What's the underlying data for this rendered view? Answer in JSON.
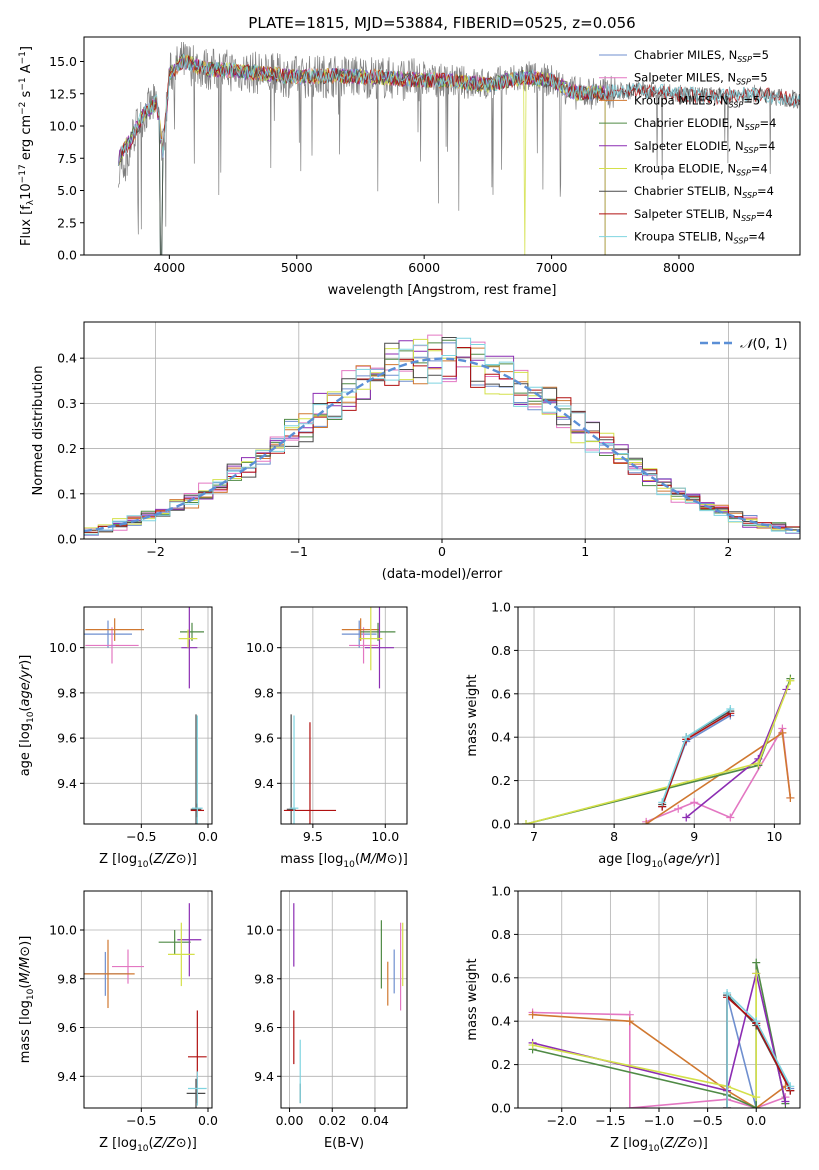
{
  "figure": {
    "title": "PLATE=1815, MJD=53884, FIBERID=0525, z=0.056",
    "series_colors": [
      "#6f8fcf",
      "#e377c2",
      "#d07830",
      "#4f8a45",
      "#8c2db3",
      "#d4e04a",
      "#4a4a4a",
      "#b01010",
      "#7fd4e0"
    ],
    "spectrum_color": "#808080"
  },
  "chart_data": [
    {
      "id": "spectrum",
      "type": "line",
      "title": "PLATE=1815, MJD=53884, FIBERID=0525, z=0.056",
      "xlabel": "wavelength [Angstrom, rest frame]",
      "ylabel": "Flux [f_λ 10^-17 erg cm^-2 s^-1 A^-1]",
      "xlim": [
        3330,
        8950
      ],
      "ylim": [
        0,
        16.9
      ],
      "xticks": [
        4000,
        5000,
        6000,
        7000,
        8000
      ],
      "yticks": [
        0.0,
        2.5,
        5.0,
        7.5,
        10.0,
        12.5,
        15.0
      ],
      "grid": false,
      "legend_position": "top-right",
      "legend": [
        {
          "name": "Chabrier MILES",
          "nssp": "5"
        },
        {
          "name": "Salpeter MILES",
          "nssp": "5"
        },
        {
          "name": "Kroupa MILES",
          "nssp": "5"
        },
        {
          "name": "Chabrier ELODIE",
          "nssp": "4"
        },
        {
          "name": "Salpeter ELODIE",
          "nssp": "4"
        },
        {
          "name": "Kroupa ELODIE",
          "nssp": "4"
        },
        {
          "name": "Chabrier STELIB",
          "nssp": "4"
        },
        {
          "name": "Salpeter STELIB",
          "nssp": "4"
        },
        {
          "name": "Kroupa STELIB",
          "nssp": "4"
        }
      ],
      "data_anchor_x": [
        3600,
        3700,
        3800,
        3900,
        3950,
        4000,
        4100,
        4300,
        4500,
        4800,
        5000,
        5300,
        5600,
        5900,
        6200,
        6500,
        6800,
        7000,
        7200,
        7400,
        7700,
        8000,
        8300,
        8600,
        8950
      ],
      "data_anchor_y": [
        7.5,
        9.0,
        11.0,
        11.8,
        8.0,
        14.0,
        15.0,
        14.4,
        14.3,
        14.0,
        13.8,
        13.9,
        13.8,
        13.6,
        13.5,
        13.2,
        13.8,
        13.5,
        12.5,
        12.6,
        12.8,
        12.5,
        12.3,
        12.5,
        12.0
      ],
      "models_end_x": 7420
    },
    {
      "id": "residuals",
      "type": "histogram",
      "xlabel": "(data-model)/error",
      "ylabel": "Normed distribution",
      "xlim": [
        -2.5,
        2.5
      ],
      "ylim": [
        0,
        0.48
      ],
      "xticks": [
        -2,
        -1,
        0,
        1,
        2
      ],
      "yticks": [
        0.0,
        0.1,
        0.2,
        0.3,
        0.4
      ],
      "grid": true,
      "legend_position": "top-right",
      "legend": [
        {
          "name": "N(0, 1)"
        }
      ],
      "bin_width": 0.1,
      "reference_curve": "normal(0,1)"
    },
    {
      "id": "age-vs-Z",
      "type": "errorbar",
      "xlabel": "Z [log10(Z/Z⊙)]",
      "ylabel": "age [log10(age/yr)]",
      "xlim": [
        -0.93,
        0.03
      ],
      "ylim": [
        9.22,
        10.18
      ],
      "xticks": [
        -0.5,
        0.0
      ],
      "yticks": [
        9.4,
        9.6,
        9.8,
        10.0
      ],
      "grid": true,
      "points": [
        {
          "x": -0.75,
          "y": 10.06,
          "xerr": 0.18,
          "yerr": 0.06
        },
        {
          "x": -0.72,
          "y": 10.01,
          "xerr": 0.2,
          "yerr": 0.08
        },
        {
          "x": -0.7,
          "y": 10.08,
          "xerr": 0.22,
          "yerr": 0.05
        },
        {
          "x": -0.12,
          "y": 10.07,
          "xerr": 0.09,
          "yerr": 0.04
        },
        {
          "x": -0.14,
          "y": 10.0,
          "xerr": 0.06,
          "yerr": 0.18
        },
        {
          "x": -0.15,
          "y": 10.04,
          "xerr": 0.07,
          "yerr": 0.04
        },
        {
          "x": -0.09,
          "y": 9.285,
          "xerr": 0.04,
          "yerr": 0.42
        },
        {
          "x": -0.08,
          "y": 9.28,
          "xerr": 0.05,
          "yerr": 0.03
        },
        {
          "x": -0.08,
          "y": 9.29,
          "xerr": 0.04,
          "yerr": 0.41
        }
      ]
    },
    {
      "id": "age-vs-mass",
      "type": "errorbar",
      "xlabel": "mass [log10(M/M⊙)]",
      "ylabel": "",
      "xlim": [
        9.28,
        10.15
      ],
      "ylim": [
        9.22,
        10.18
      ],
      "xticks": [
        9.5,
        10.0
      ],
      "yticks": [
        9.4,
        9.6,
        9.8,
        10.0
      ],
      "grid": true,
      "points": [
        {
          "x": 9.82,
          "y": 10.06,
          "xerr": 0.12,
          "yerr": 0.06
        },
        {
          "x": 9.85,
          "y": 10.01,
          "xerr": 0.1,
          "yerr": 0.08
        },
        {
          "x": 9.83,
          "y": 10.08,
          "xerr": 0.13,
          "yerr": 0.05
        },
        {
          "x": 9.95,
          "y": 10.07,
          "xerr": 0.12,
          "yerr": 0.04
        },
        {
          "x": 9.96,
          "y": 10.0,
          "xerr": 0.1,
          "yerr": 0.18
        },
        {
          "x": 9.9,
          "y": 10.04,
          "xerr": 0.08,
          "yerr": 0.14
        },
        {
          "x": 9.35,
          "y": 9.285,
          "xerr": 0.03,
          "yerr": 0.42
        },
        {
          "x": 9.48,
          "y": 9.28,
          "xerr": 0.18,
          "yerr": 0.39
        },
        {
          "x": 9.37,
          "y": 9.29,
          "xerr": 0.03,
          "yerr": 0.41
        }
      ]
    },
    {
      "id": "weight-vs-age",
      "type": "line",
      "xlabel": "age [log10(age/yr)]",
      "ylabel": "mass weight",
      "xlim": [
        6.8,
        10.32
      ],
      "ylim": [
        0,
        1.0
      ],
      "xticks": [
        7,
        8,
        9,
        10
      ],
      "yticks": [
        0.0,
        0.2,
        0.4,
        0.6,
        0.8,
        1.0
      ],
      "grid": true,
      "series": [
        {
          "x": [
            8.6,
            8.9,
            9.45
          ],
          "y": [
            0.08,
            0.38,
            0.5
          ]
        },
        {
          "x": [
            8.4,
            8.8,
            9.0,
            9.45,
            10.1,
            10.2
          ],
          "y": [
            0.01,
            0.07,
            0.1,
            0.03,
            0.44,
            0.12
          ]
        },
        {
          "x": [
            8.4,
            10.1,
            10.2
          ],
          "y": [
            0.0,
            0.42,
            0.12
          ]
        },
        {
          "x": [
            6.9,
            9.8,
            10.2
          ],
          "y": [
            0.0,
            0.27,
            0.67
          ]
        },
        {
          "x": [
            8.9,
            9.8,
            10.15
          ],
          "y": [
            0.03,
            0.3,
            0.62
          ]
        },
        {
          "x": [
            6.9,
            9.8,
            10.2
          ],
          "y": [
            0.0,
            0.28,
            0.66
          ]
        },
        {
          "x": [
            8.6,
            8.9,
            9.45
          ],
          "y": [
            0.09,
            0.4,
            0.52
          ]
        },
        {
          "x": [
            8.6,
            8.9,
            9.45
          ],
          "y": [
            0.08,
            0.39,
            0.51
          ]
        },
        {
          "x": [
            8.6,
            8.9,
            9.45
          ],
          "y": [
            0.1,
            0.4,
            0.53
          ]
        }
      ]
    },
    {
      "id": "mass-vs-Z",
      "type": "errorbar",
      "xlabel": "Z [log10(Z/Z⊙)]",
      "ylabel": "mass [log10(M/M⊙)]",
      "xlim": [
        -0.93,
        0.03
      ],
      "ylim": [
        9.27,
        10.16
      ],
      "xticks": [
        -0.5,
        0.0
      ],
      "yticks": [
        9.4,
        9.6,
        9.8,
        10.0
      ],
      "grid": true,
      "points": [
        {
          "x": -0.77,
          "y": 9.82,
          "xerr": 0.18,
          "yerr": 0.09
        },
        {
          "x": -0.6,
          "y": 9.85,
          "xerr": 0.12,
          "yerr": 0.07
        },
        {
          "x": -0.75,
          "y": 9.82,
          "xerr": 0.2,
          "yerr": 0.14
        },
        {
          "x": -0.25,
          "y": 9.95,
          "xerr": 0.12,
          "yerr": 0.05
        },
        {
          "x": -0.14,
          "y": 9.96,
          "xerr": 0.09,
          "yerr": 0.15
        },
        {
          "x": -0.2,
          "y": 9.9,
          "xerr": 0.1,
          "yerr": 0.13
        },
        {
          "x": -0.09,
          "y": 9.33,
          "xerr": 0.07,
          "yerr": 0.06
        },
        {
          "x": -0.08,
          "y": 9.48,
          "xerr": 0.07,
          "yerr": 0.19
        },
        {
          "x": -0.08,
          "y": 9.35,
          "xerr": 0.07,
          "yerr": 0.07
        }
      ]
    },
    {
      "id": "mass-vs-EBV",
      "type": "errorbar",
      "xlabel": "E(B-V)",
      "ylabel": "",
      "xlim": [
        -0.004,
        0.055
      ],
      "ylim": [
        9.27,
        10.16
      ],
      "xticks": [
        0.0,
        0.02,
        0.04
      ],
      "yticks": [
        9.4,
        9.6,
        9.8,
        10.0
      ],
      "grid": true,
      "points": [
        {
          "x": 0.049,
          "y": 9.83,
          "xerr": 0.0,
          "yerr": 0.09
        },
        {
          "x": 0.052,
          "y": 9.85,
          "xerr": 0.0,
          "yerr": 0.18
        },
        {
          "x": 0.046,
          "y": 9.78,
          "xerr": 0.0,
          "yerr": 0.09
        },
        {
          "x": 0.043,
          "y": 9.9,
          "xerr": 0.0,
          "yerr": 0.14
        },
        {
          "x": 0.002,
          "y": 9.98,
          "xerr": 0.0,
          "yerr": 0.13
        },
        {
          "x": 0.053,
          "y": 9.9,
          "xerr": 0.0,
          "yerr": 0.13
        },
        {
          "x": 0.005,
          "y": 9.33,
          "xerr": 0.0,
          "yerr": 0.04
        },
        {
          "x": 0.002,
          "y": 9.56,
          "xerr": 0.0,
          "yerr": 0.11
        },
        {
          "x": 0.005,
          "y": 9.42,
          "xerr": 0.0,
          "yerr": 0.13
        }
      ]
    },
    {
      "id": "weight-vs-Z",
      "type": "line",
      "xlabel": "Z [log10(Z/Z⊙)]",
      "ylabel": "mass weight",
      "xlim": [
        -2.45,
        0.45
      ],
      "ylim": [
        0,
        1.0
      ],
      "xticks": [
        -2.0,
        -1.5,
        -1.0,
        -0.5,
        0.0
      ],
      "yticks": [
        0.0,
        0.2,
        0.4,
        0.6,
        0.8,
        1.0
      ],
      "grid": true,
      "series": [
        {
          "x": [
            -0.3,
            -0.3,
            0.0,
            0.0,
            0.35
          ],
          "y": [
            0.0,
            0.52,
            0.0,
            0.4,
            0.09
          ]
        },
        {
          "x": [
            -2.3,
            -1.3,
            -1.3,
            -0.3,
            0.0,
            0.3
          ],
          "y": [
            0.44,
            0.43,
            0.0,
            0.04,
            0.0,
            0.05
          ]
        },
        {
          "x": [
            -2.3,
            -1.3,
            -0.3,
            0.0,
            0.3
          ],
          "y": [
            0.43,
            0.4,
            0.08,
            0.0,
            0.1
          ]
        },
        {
          "x": [
            -2.3,
            -0.3,
            0.0,
            0.0,
            0.3
          ],
          "y": [
            0.27,
            0.06,
            0.0,
            0.67,
            0.02
          ]
        },
        {
          "x": [
            -2.3,
            -0.3,
            0.0,
            0.3
          ],
          "y": [
            0.3,
            0.08,
            0.62,
            0.03
          ]
        },
        {
          "x": [
            -2.3,
            -0.3,
            0.0,
            0.0
          ],
          "y": [
            0.29,
            0.1,
            0.05,
            0.62
          ]
        },
        {
          "x": [
            -0.3,
            -0.3,
            0.0,
            0.35
          ],
          "y": [
            0.0,
            0.52,
            0.38,
            0.08
          ]
        },
        {
          "x": [
            -0.3,
            -0.3,
            0.0,
            0.35
          ],
          "y": [
            0.0,
            0.51,
            0.39,
            0.08
          ]
        },
        {
          "x": [
            -0.3,
            -0.3,
            0.0,
            0.35
          ],
          "y": [
            0.0,
            0.53,
            0.4,
            0.1
          ]
        }
      ]
    }
  ]
}
